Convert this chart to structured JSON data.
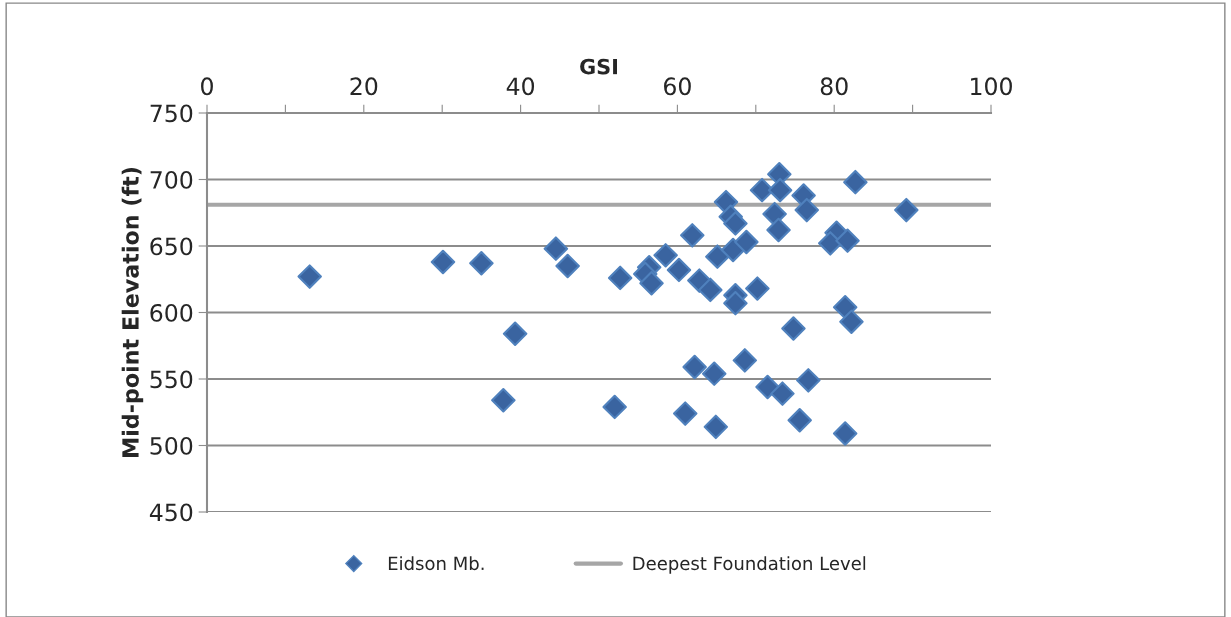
{
  "chart_data": {
    "type": "scatter",
    "xlabel": "GSI",
    "ylabel": "Mid-point Elevation (ft)",
    "xlim": [
      0,
      100
    ],
    "ylim": [
      450,
      750
    ],
    "xticks": [
      0,
      {
        "value": 10,
        "label": null
      },
      20,
      {
        "value": 30,
        "label": null
      },
      40,
      {
        "value": 50,
        "label": null
      },
      60,
      {
        "value": 70,
        "label": null
      },
      80,
      {
        "value": 90,
        "label": null
      },
      100
    ],
    "yticks": [
      450,
      500,
      550,
      600,
      650,
      700,
      750
    ],
    "grid": "y",
    "legend": "bottom",
    "marker": "diamond",
    "series": [
      {
        "name": "Eidson Mb.",
        "color": "#3a64a0",
        "x": [
          13.1,
          30.1,
          35.0,
          44.5,
          46.0,
          39.3,
          37.8,
          52.7,
          56.4,
          55.9,
          56.7,
          58.5,
          60.2,
          61.9,
          62.8,
          64.2,
          65.1,
          66.2,
          66.8,
          67.4,
          67.1,
          68.8,
          67.4,
          67.4,
          70.2,
          70.8,
          73.0,
          73.1,
          72.4,
          72.9,
          76.1,
          76.5,
          82.7,
          89.2,
          80.3,
          79.5,
          81.7,
          81.4,
          82.2,
          74.8,
          62.2,
          64.7,
          68.6,
          71.5,
          73.4,
          76.7,
          52.0,
          61.0,
          64.9,
          75.6,
          81.4
        ],
        "values": [
          627,
          638,
          637,
          648,
          635,
          584,
          534,
          626,
          634,
          629,
          622,
          643,
          632,
          658,
          624,
          617,
          642,
          683,
          672,
          667,
          647,
          653,
          613,
          607,
          618,
          692,
          704,
          692,
          674,
          662,
          688,
          677,
          698,
          677,
          660,
          652,
          654,
          604,
          593,
          588,
          559,
          554,
          564,
          544,
          539,
          549,
          529,
          524,
          514,
          519,
          509
        ]
      }
    ],
    "ref_lines": [
      {
        "axis": "y",
        "value": 681,
        "label": "Deepest Foundation Level",
        "color": "#a6a6a6",
        "line_style": "solid"
      }
    ]
  }
}
